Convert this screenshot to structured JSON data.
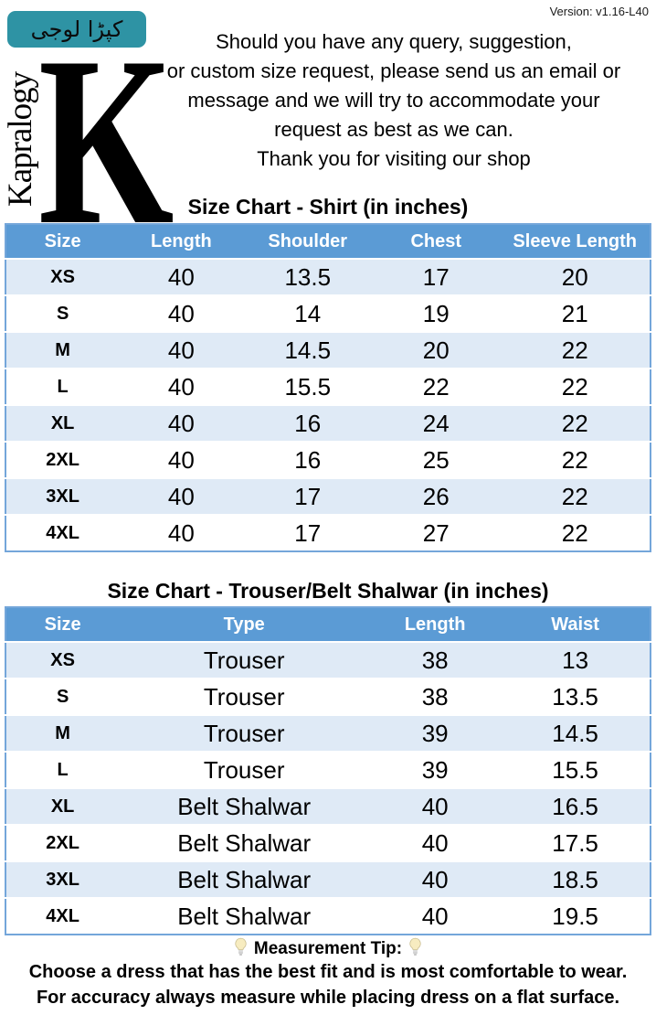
{
  "version": "Version: v1.16-L40",
  "logo": {
    "badge_text": "کپڑا لوجی",
    "brand_vertical": "Kapralogy",
    "monogram": "K",
    "badge_color": "#2E93A4"
  },
  "intro": {
    "lines": [
      "Should you have any query, suggestion,",
      "or custom size request, please send us an email or",
      "message and we will try to accommodate your",
      "request as best as we can.",
      "Thank you for visiting our shop"
    ]
  },
  "shirt_table": {
    "title": "Size Chart - Shirt (in inches)",
    "headers": [
      "Size",
      "Length",
      "Shoulder",
      "Chest",
      "Sleeve Length"
    ],
    "rows": [
      [
        "XS",
        "40",
        "13.5",
        "17",
        "20"
      ],
      [
        "S",
        "40",
        "14",
        "19",
        "21"
      ],
      [
        "M",
        "40",
        "14.5",
        "20",
        "22"
      ],
      [
        "L",
        "40",
        "15.5",
        "22",
        "22"
      ],
      [
        "XL",
        "40",
        "16",
        "24",
        "22"
      ],
      [
        "2XL",
        "40",
        "16",
        "25",
        "22"
      ],
      [
        "3XL",
        "40",
        "17",
        "26",
        "22"
      ],
      [
        "4XL",
        "40",
        "17",
        "27",
        "22"
      ]
    ]
  },
  "trouser_table": {
    "title": "Size Chart - Trouser/Belt Shalwar (in inches)",
    "headers": [
      "Size",
      "Type",
      "Length",
      "Waist"
    ],
    "rows": [
      [
        "XS",
        "Trouser",
        "38",
        "13"
      ],
      [
        "S",
        "Trouser",
        "38",
        "13.5"
      ],
      [
        "M",
        "Trouser",
        "39",
        "14.5"
      ],
      [
        "L",
        "Trouser",
        "39",
        "15.5"
      ],
      [
        "XL",
        "Belt Shalwar",
        "40",
        "16.5"
      ],
      [
        "2XL",
        "Belt Shalwar",
        "40",
        "17.5"
      ],
      [
        "3XL",
        "Belt Shalwar",
        "40",
        "18.5"
      ],
      [
        "4XL",
        "Belt Shalwar",
        "40",
        "19.5"
      ]
    ]
  },
  "tip": {
    "icon": "lightbulb-icon",
    "title": "Measurement Tip:",
    "lines": [
      "Choose a dress that has the best fit and is most comfortable to wear.",
      "For accuracy always measure while placing dress on a flat surface."
    ]
  },
  "colors": {
    "table_header_bg": "#5B9BD5",
    "table_alt_row_bg": "#DFEAF6",
    "table_border": "#74A6DA",
    "badge_teal": "#2E93A4"
  }
}
